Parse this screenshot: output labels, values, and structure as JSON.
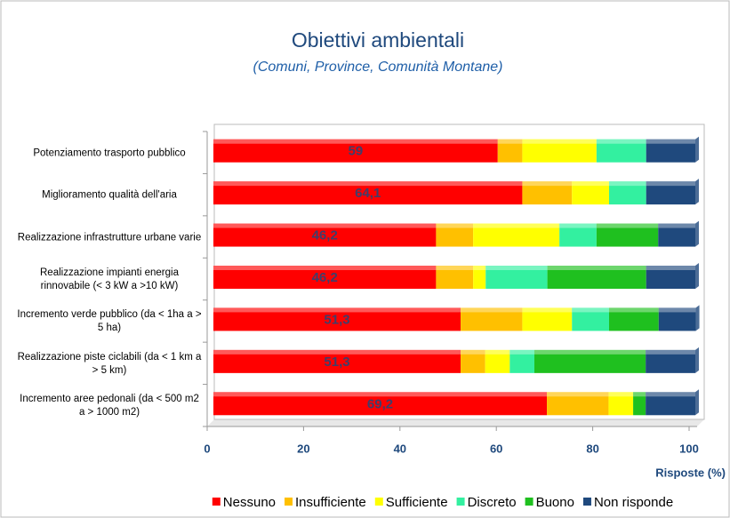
{
  "chart_data": {
    "type": "stacked-barh",
    "title": "Obiettivi ambientali",
    "subtitle": "(Comuni, Province, Comunità Montane)",
    "xlabel": "Risposte (%)",
    "categories": [
      "Potenziamento trasporto pubblico",
      "Miglioramento qualità dell'aria",
      "Realizzazione  infrastrutture urbane varie",
      "Realizzazione  impianti energia rinnovabile (< 3 kW a >10 kW)",
      "Incremento verde pubblico (da < 1ha a > 5 ha)",
      "Realizzazione  piste ciclabili (da < 1 km a > 5 km)",
      "Incremento aree pedonali (da < 500 m2 a > 1000 m2)"
    ],
    "series": [
      {
        "name": "Nessuno",
        "color": "#ff0000",
        "values": [
          59,
          64.1,
          46.2,
          46.2,
          51.3,
          51.3,
          69.2
        ],
        "value_labels": [
          "59",
          "64,1",
          "46,2",
          "46,2",
          "51,3",
          "51,3",
          "69,2"
        ]
      },
      {
        "name": "Insufficiente",
        "color": "#ffc000",
        "values": [
          5.1,
          10.3,
          7.7,
          7.7,
          12.8,
          5.1,
          12.8
        ]
      },
      {
        "name": "Sufficiente",
        "color": "#ffff00",
        "values": [
          15.4,
          7.7,
          17.9,
          2.6,
          10.3,
          5.1,
          5.1
        ]
      },
      {
        "name": "Discreto",
        "color": "#33f0a0",
        "values": [
          10.3,
          7.7,
          7.7,
          12.8,
          7.7,
          5.1,
          0
        ]
      },
      {
        "name": "Buono",
        "color": "#1fc01f",
        "values": [
          0,
          0,
          12.8,
          20.5,
          10.3,
          23.1,
          2.6
        ]
      },
      {
        "name": "Non risponde",
        "color": "#1f497d",
        "values": [
          10.2,
          10.2,
          7.7,
          10.2,
          7.7,
          10.3,
          10.3
        ]
      }
    ],
    "xlim": [
      0,
      100
    ],
    "xticks": [
      0,
      20,
      40,
      60,
      80,
      100
    ],
    "legend": "bottom"
  }
}
